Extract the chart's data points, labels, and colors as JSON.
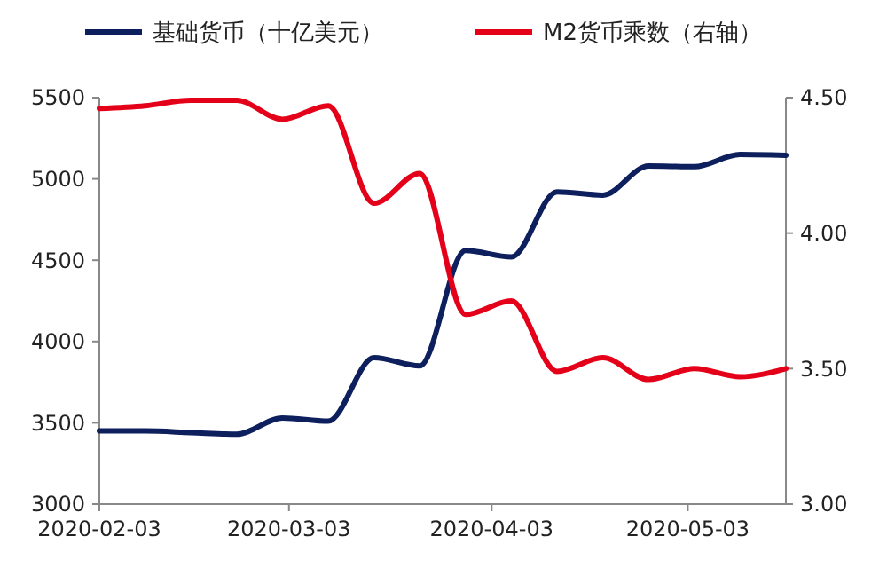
{
  "chart_data": {
    "type": "line",
    "x": [
      "2020-02-03",
      "2020-02-10",
      "2020-02-17",
      "2020-02-24",
      "2020-03-02",
      "2020-03-09",
      "2020-03-16",
      "2020-03-23",
      "2020-03-30",
      "2020-04-06",
      "2020-04-13",
      "2020-04-20",
      "2020-04-27",
      "2020-05-04",
      "2020-05-11",
      "2020-05-18"
    ],
    "series": [
      {
        "name": "基础货币（十亿美元）",
        "color": "#0d1f5c",
        "values": [
          3450,
          3450,
          3440,
          3430,
          3530,
          3510,
          3900,
          3850,
          4560,
          4520,
          4920,
          4900,
          5080,
          5075,
          5150,
          5145
        ]
      },
      {
        "name": "M2货币乘数（右轴）",
        "color": "#e5001a",
        "axis": "y2",
        "values": [
          4.46,
          4.47,
          4.49,
          4.49,
          4.42,
          4.47,
          4.11,
          4.22,
          3.7,
          3.75,
          3.49,
          3.54,
          3.46,
          3.5,
          3.47,
          3.5
        ]
      }
    ],
    "xlim": [
      "2020-02-03",
      "2020-05-18"
    ],
    "xticks": [
      {
        "value": "2020-02-03",
        "label": "2020-02-03"
      },
      {
        "value": "2020-03-03",
        "label": "2020-03-03"
      },
      {
        "value": "2020-04-03",
        "label": "2020-04-03"
      },
      {
        "value": "2020-05-03",
        "label": "2020-05-03"
      }
    ],
    "ylim": [
      3000,
      5500
    ],
    "yticks": [
      3000,
      3500,
      4000,
      4500,
      5000,
      5500
    ],
    "y2lim": [
      3,
      4.5
    ],
    "y2ticks": [
      {
        "value": 3,
        "label": "3.00"
      },
      {
        "value": 3.5,
        "label": "3.50"
      },
      {
        "value": 4,
        "label": "4.00"
      },
      {
        "value": 4.5,
        "label": "4.50"
      }
    ],
    "legend": "top",
    "grid": false,
    "marker": "none",
    "line_style": "solid"
  }
}
